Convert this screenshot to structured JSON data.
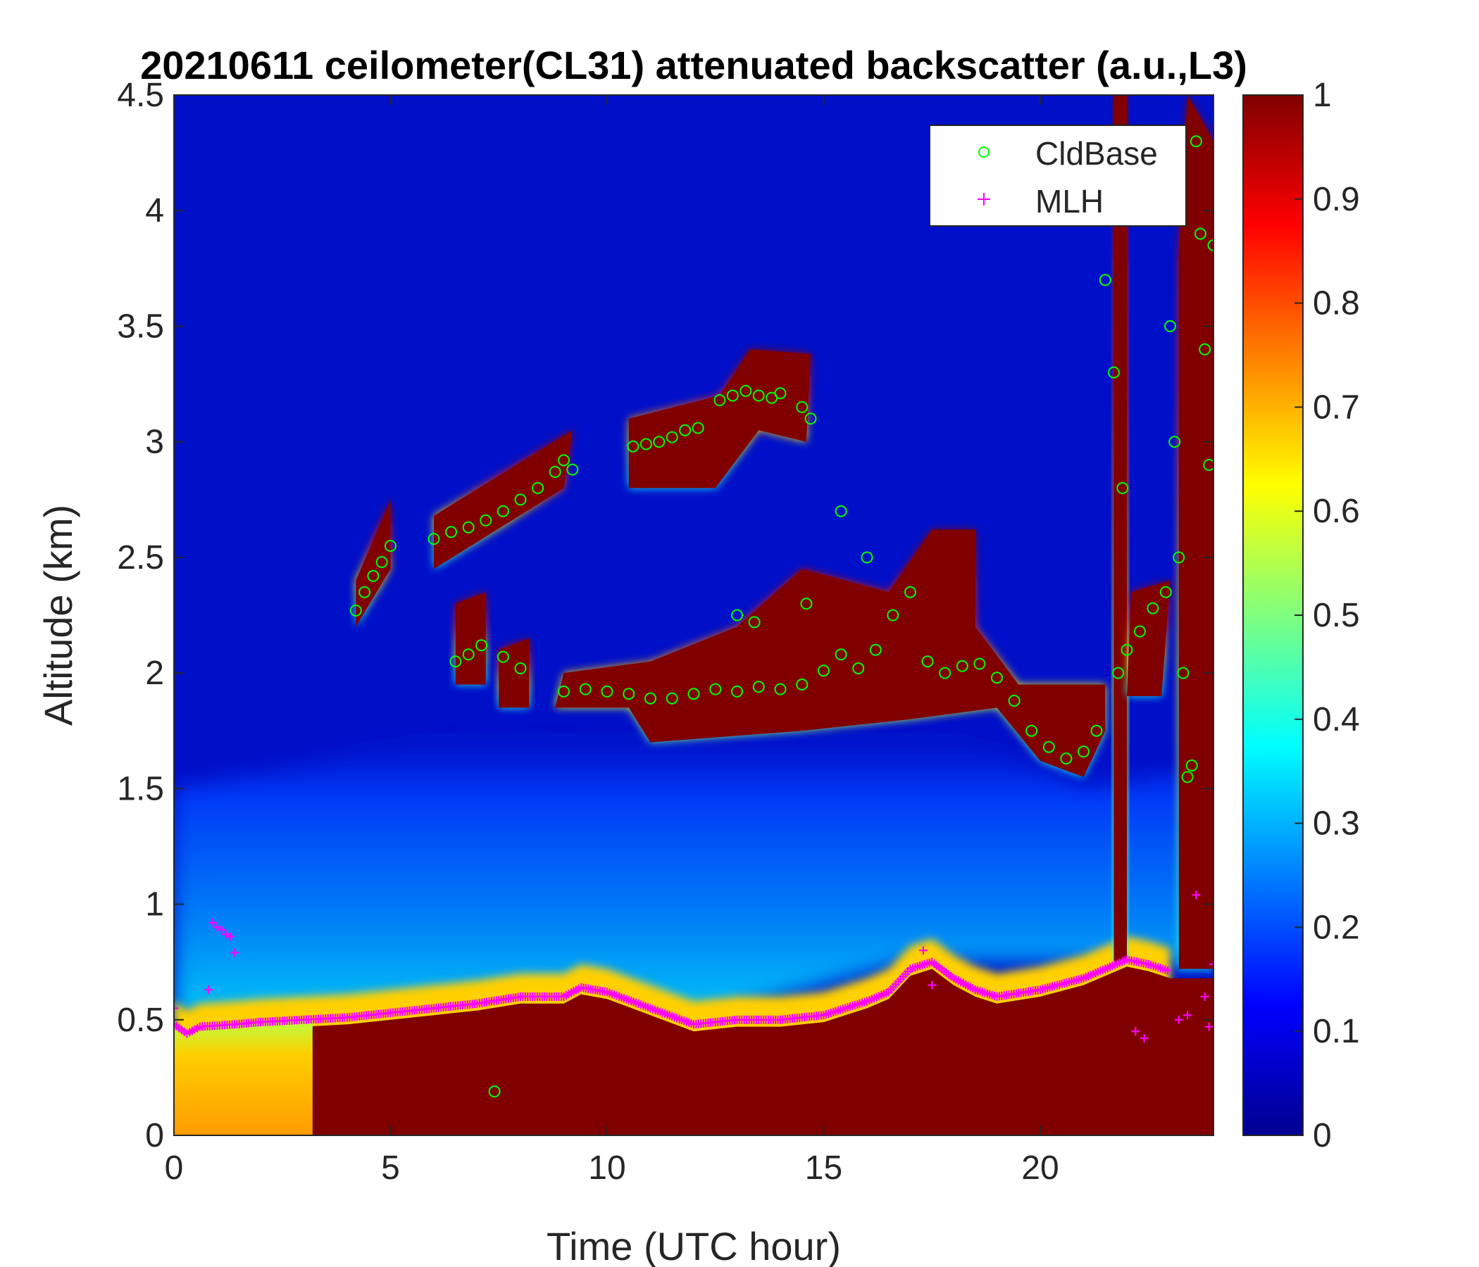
{
  "chart_data": {
    "type": "heatmap",
    "title": "20210611 ceilometer(CL31) attenuated backscatter (a.u.,L3)",
    "xlabel": "Time (UTC hour)",
    "ylabel": "Altitude (km)",
    "xlim": [
      0,
      24
    ],
    "ylim": [
      0,
      4.5
    ],
    "x_ticks": [
      "0",
      "5",
      "10",
      "15",
      "20"
    ],
    "x_tick_values": [
      0,
      5,
      10,
      15,
      20
    ],
    "y_ticks": [
      "0",
      "0.5",
      "1",
      "1.5",
      "2",
      "2.5",
      "3",
      "3.5",
      "4",
      "4.5"
    ],
    "y_tick_values": [
      0,
      0.5,
      1,
      1.5,
      2,
      2.5,
      3,
      3.5,
      4,
      4.5
    ],
    "colorbar": {
      "colormap": "jet",
      "range": [
        0,
        1
      ],
      "ticks": [
        "0",
        "0.1",
        "0.2",
        "0.3",
        "0.4",
        "0.5",
        "0.6",
        "0.7",
        "0.8",
        "0.9",
        "1"
      ],
      "tick_values": [
        0,
        0.1,
        0.2,
        0.3,
        0.4,
        0.5,
        0.6,
        0.7,
        0.8,
        0.9,
        1
      ]
    },
    "legend": {
      "placement": "top-right",
      "entries": [
        {
          "name": "CldBase",
          "marker": "circle",
          "color": "#00ff00"
        },
        {
          "name": "MLH",
          "marker": "plus",
          "color": "#ff00ff"
        }
      ]
    },
    "mlh_series": {
      "name": "MLH",
      "x": [
        0,
        0.3,
        0.6,
        1.4,
        2,
        3,
        4,
        5,
        6,
        7,
        8,
        9,
        9.4,
        10,
        11,
        12,
        13,
        14,
        15,
        16,
        16.5,
        17,
        17.5,
        18,
        18.5,
        19,
        20,
        21,
        21.5,
        22,
        22.5,
        23
      ],
      "y": [
        0.48,
        0.44,
        0.47,
        0.48,
        0.49,
        0.5,
        0.51,
        0.53,
        0.55,
        0.57,
        0.6,
        0.6,
        0.64,
        0.62,
        0.55,
        0.48,
        0.5,
        0.5,
        0.52,
        0.58,
        0.62,
        0.72,
        0.75,
        0.68,
        0.63,
        0.6,
        0.63,
        0.68,
        0.72,
        0.76,
        0.74,
        0.71
      ]
    },
    "mlh_scatter": {
      "x": [
        0,
        0.8,
        0.9,
        1.0,
        1.1,
        1.2,
        1.3,
        1.4,
        17.3,
        17.5,
        22.2,
        22.4,
        23.2,
        23.4,
        23.6,
        23.8,
        23.9,
        24.0
      ],
      "y": [
        0.55,
        0.63,
        0.92,
        0.9,
        0.89,
        0.87,
        0.86,
        0.79,
        0.8,
        0.65,
        0.45,
        0.42,
        0.5,
        0.52,
        1.04,
        0.6,
        0.47,
        0.74
      ]
    },
    "cldbase_series": {
      "name": "CldBase",
      "x": [
        4.2,
        4.4,
        4.6,
        4.8,
        5.0,
        6.0,
        6.4,
        6.8,
        7.2,
        7.6,
        8.0,
        8.4,
        8.8,
        9.0,
        9.2,
        10.6,
        10.9,
        11.2,
        11.5,
        11.8,
        12.1,
        12.6,
        12.9,
        13.2,
        13.5,
        13.8,
        14.0,
        14.5,
        14.7,
        9.0,
        9.5,
        10.0,
        10.5,
        11.0,
        11.5,
        12.0,
        12.5,
        13.0,
        13.5,
        14.0,
        14.5,
        15.0,
        15.4,
        15.8,
        16.2,
        16.6,
        17.0,
        17.4,
        17.8,
        18.2,
        18.6,
        19.0,
        19.4,
        19.8,
        20.2,
        20.6,
        21.0,
        21.3,
        21.8,
        22.0,
        22.3,
        22.6,
        22.9,
        21.5,
        21.7,
        21.9,
        23.0,
        23.1,
        23.2,
        23.3,
        23.4,
        23.5,
        23.6,
        23.7,
        23.8,
        23.9,
        24.0,
        6.5,
        6.8,
        7.1,
        7.6,
        8.0,
        13.0,
        13.4,
        14.6,
        15.4,
        16.0,
        7.4
      ],
      "y": [
        2.27,
        2.35,
        2.42,
        2.48,
        2.55,
        2.58,
        2.61,
        2.63,
        2.66,
        2.7,
        2.75,
        2.8,
        2.87,
        2.92,
        2.88,
        2.98,
        2.99,
        3.0,
        3.02,
        3.05,
        3.06,
        3.18,
        3.2,
        3.22,
        3.2,
        3.19,
        3.21,
        3.15,
        3.1,
        1.92,
        1.93,
        1.92,
        1.91,
        1.89,
        1.89,
        1.91,
        1.93,
        1.92,
        1.94,
        1.93,
        1.95,
        2.01,
        2.08,
        2.02,
        2.1,
        2.25,
        2.35,
        2.05,
        2.0,
        2.03,
        2.04,
        1.98,
        1.88,
        1.75,
        1.68,
        1.63,
        1.66,
        1.75,
        2.0,
        2.1,
        2.18,
        2.28,
        2.35,
        3.7,
        3.3,
        2.8,
        3.5,
        3.0,
        2.5,
        2.0,
        1.55,
        1.6,
        4.3,
        3.9,
        3.4,
        2.9,
        3.85,
        2.05,
        2.08,
        2.12,
        2.07,
        2.02,
        2.25,
        2.22,
        2.3,
        2.7,
        2.5,
        0.19
      ]
    }
  }
}
